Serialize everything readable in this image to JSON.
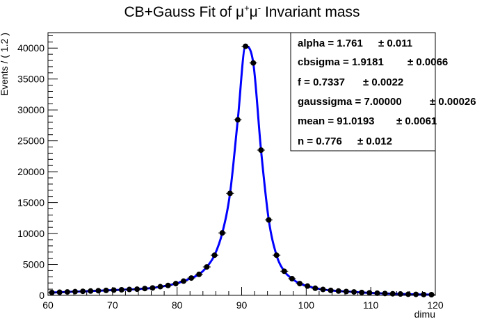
{
  "chart_data": {
    "type": "scatter",
    "title_main": "CB+Gauss Fit of μ",
    "title_sup1": "+",
    "title_mid": "μ",
    "title_sup2": "-",
    "title_tail": " Invariant mass",
    "xlabel": "dimu",
    "ylabel": "Events / ( 1.2 )",
    "xlim": [
      60,
      120
    ],
    "ylim": [
      0,
      42500
    ],
    "x_ticks": [
      "60",
      "70",
      "80",
      "90",
      "100",
      "110",
      "120"
    ],
    "y_ticks": [
      "0",
      "5000",
      "10000",
      "15000",
      "20000",
      "25000",
      "30000",
      "35000",
      "40000"
    ],
    "bin_width": 1.2,
    "series": [
      {
        "type": "points-with-errors",
        "x": [
          60.6,
          61.8,
          63.0,
          64.2,
          65.4,
          66.6,
          67.8,
          69.0,
          70.2,
          71.4,
          72.6,
          73.8,
          75.0,
          76.2,
          77.4,
          78.6,
          79.8,
          81.0,
          82.2,
          83.4,
          84.6,
          85.8,
          87.0,
          88.2,
          89.4,
          90.6,
          91.8,
          93.0,
          94.2,
          95.4,
          96.6,
          97.8,
          99.0,
          100.2,
          101.4,
          102.6,
          103.8,
          105.0,
          106.2,
          107.4,
          108.6,
          109.8,
          111.0,
          112.2,
          113.4,
          114.6,
          115.8,
          117.0,
          118.2,
          119.4
        ],
        "y": [
          450,
          500,
          550,
          600,
          650,
          700,
          750,
          800,
          850,
          900,
          950,
          1000,
          1100,
          1200,
          1400,
          1600,
          1900,
          2300,
          2800,
          3400,
          4600,
          6500,
          10100,
          16500,
          28400,
          40300,
          37600,
          23500,
          12200,
          6500,
          3900,
          2700,
          1900,
          1500,
          1150,
          950,
          800,
          700,
          620,
          550,
          470,
          410,
          350,
          300,
          260,
          220,
          180,
          160,
          130,
          110
        ]
      },
      {
        "type": "fit-curve",
        "color": "#0000ff"
      }
    ],
    "stats_box": [
      {
        "label": "alpha =  1.761",
        "error": "± 0.011"
      },
      {
        "label": "cbsigma =  1.9181",
        "error": "± 0.0066"
      },
      {
        "label": "f =  0.7337",
        "error": "± 0.0022"
      },
      {
        "label": "gaussigma =  7.00000",
        "error": "± 0.00026"
      },
      {
        "label": "mean =  91.0193",
        "error": "± 0.0061"
      },
      {
        "label": "n =  0.776",
        "error": "± 0.012"
      }
    ],
    "grid": false,
    "legend_position": "top-right"
  }
}
